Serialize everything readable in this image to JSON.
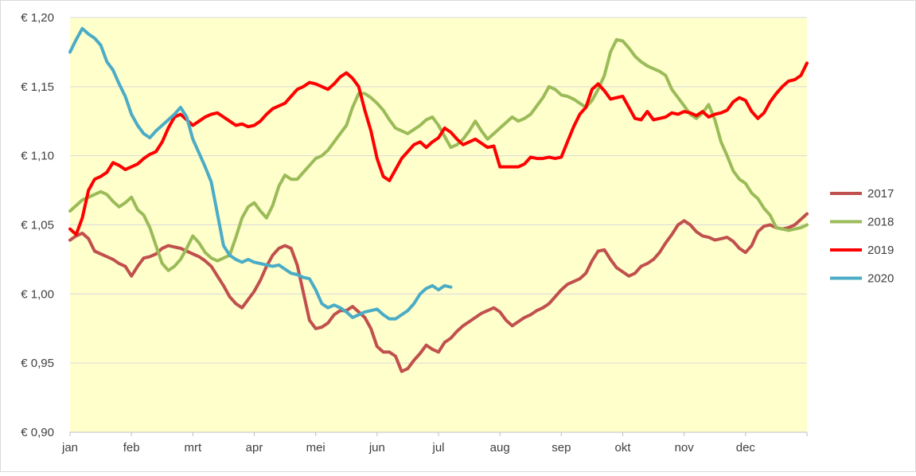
{
  "chart_data": {
    "type": "line",
    "title": "",
    "xlabel": "",
    "ylabel": "",
    "ylim": [
      0.9,
      1.2
    ],
    "y_ticks": [
      0.9,
      0.95,
      1.0,
      1.05,
      1.1,
      1.15,
      1.2
    ],
    "y_tick_labels": [
      "€ 0,90",
      "€ 0,95",
      "€ 1,00",
      "€ 1,05",
      "€ 1,10",
      "€ 1,15",
      "€ 1,20"
    ],
    "x_range_months": [
      0,
      12
    ],
    "month_labels": [
      "jan",
      "feb",
      "mrt",
      "apr",
      "mei",
      "jun",
      "jul",
      "aug",
      "sep",
      "okt",
      "nov",
      "dec"
    ],
    "grid": "horizontal",
    "legend_position": "right",
    "plot_background": "#FFFFCC",
    "series": [
      {
        "name": "2017",
        "color": "#C0504D",
        "x": [
          0.0,
          0.1,
          0.2,
          0.3,
          0.4,
          0.5,
          0.6,
          0.7,
          0.8,
          0.9,
          1.0,
          1.1,
          1.2,
          1.3,
          1.4,
          1.5,
          1.6,
          1.7,
          1.8,
          1.9,
          2.0,
          2.1,
          2.2,
          2.3,
          2.4,
          2.5,
          2.6,
          2.7,
          2.8,
          2.9,
          3.0,
          3.1,
          3.2,
          3.3,
          3.4,
          3.5,
          3.6,
          3.7,
          3.8,
          3.9,
          4.0,
          4.1,
          4.2,
          4.3,
          4.4,
          4.5,
          4.6,
          4.7,
          4.8,
          4.9,
          5.0,
          5.1,
          5.2,
          5.3,
          5.4,
          5.5,
          5.6,
          5.7,
          5.8,
          5.9,
          6.0,
          6.1,
          6.2,
          6.3,
          6.4,
          6.5,
          6.6,
          6.7,
          6.8,
          6.9,
          7.0,
          7.1,
          7.2,
          7.3,
          7.4,
          7.5,
          7.6,
          7.7,
          7.8,
          7.9,
          8.0,
          8.1,
          8.2,
          8.3,
          8.4,
          8.5,
          8.6,
          8.7,
          8.8,
          8.9,
          9.0,
          9.1,
          9.2,
          9.3,
          9.4,
          9.5,
          9.6,
          9.7,
          9.8,
          9.9,
          10.0,
          10.1,
          10.2,
          10.3,
          10.4,
          10.5,
          10.6,
          10.7,
          10.8,
          10.9,
          11.0,
          11.1,
          11.2,
          11.3,
          11.4,
          11.5,
          11.6,
          11.7,
          11.8,
          11.9,
          12.0
        ],
        "values": [
          1.039,
          1.042,
          1.044,
          1.04,
          1.031,
          1.029,
          1.027,
          1.025,
          1.022,
          1.02,
          1.013,
          1.02,
          1.026,
          1.027,
          1.029,
          1.033,
          1.035,
          1.034,
          1.033,
          1.031,
          1.029,
          1.027,
          1.024,
          1.02,
          1.013,
          1.006,
          0.998,
          0.993,
          0.99,
          0.996,
          1.002,
          1.01,
          1.02,
          1.028,
          1.033,
          1.035,
          1.033,
          1.021,
          1.001,
          0.981,
          0.975,
          0.976,
          0.979,
          0.985,
          0.988,
          0.988,
          0.991,
          0.987,
          0.983,
          0.975,
          0.962,
          0.958,
          0.958,
          0.955,
          0.944,
          0.946,
          0.952,
          0.957,
          0.963,
          0.96,
          0.958,
          0.965,
          0.968,
          0.973,
          0.977,
          0.98,
          0.983,
          0.986,
          0.988,
          0.99,
          0.987,
          0.981,
          0.977,
          0.98,
          0.983,
          0.985,
          0.988,
          0.99,
          0.993,
          0.998,
          1.003,
          1.007,
          1.009,
          1.011,
          1.015,
          1.024,
          1.031,
          1.032,
          1.025,
          1.019,
          1.016,
          1.013,
          1.015,
          1.02,
          1.022,
          1.025,
          1.03,
          1.037,
          1.043,
          1.05,
          1.053,
          1.05,
          1.045,
          1.042,
          1.041,
          1.039,
          1.04,
          1.041,
          1.038,
          1.033,
          1.03,
          1.035,
          1.045,
          1.049,
          1.05,
          1.048,
          1.047,
          1.048,
          1.05,
          1.054,
          1.058
        ]
      },
      {
        "name": "2018",
        "color": "#9BBB59",
        "x": [
          0.0,
          0.1,
          0.2,
          0.3,
          0.4,
          0.5,
          0.6,
          0.7,
          0.8,
          0.9,
          1.0,
          1.1,
          1.2,
          1.3,
          1.4,
          1.5,
          1.6,
          1.7,
          1.8,
          1.9,
          2.0,
          2.1,
          2.2,
          2.3,
          2.4,
          2.5,
          2.6,
          2.7,
          2.8,
          2.9,
          3.0,
          3.1,
          3.2,
          3.3,
          3.4,
          3.5,
          3.6,
          3.7,
          3.8,
          3.9,
          4.0,
          4.1,
          4.2,
          4.3,
          4.4,
          4.5,
          4.6,
          4.7,
          4.8,
          4.9,
          5.0,
          5.1,
          5.2,
          5.3,
          5.4,
          5.5,
          5.6,
          5.7,
          5.8,
          5.9,
          6.0,
          6.1,
          6.2,
          6.3,
          6.4,
          6.5,
          6.6,
          6.7,
          6.8,
          6.9,
          7.0,
          7.1,
          7.2,
          7.3,
          7.4,
          7.5,
          7.6,
          7.7,
          7.8,
          7.9,
          8.0,
          8.1,
          8.2,
          8.3,
          8.4,
          8.5,
          8.6,
          8.7,
          8.8,
          8.9,
          9.0,
          9.1,
          9.2,
          9.3,
          9.4,
          9.5,
          9.6,
          9.7,
          9.8,
          9.9,
          10.0,
          10.1,
          10.2,
          10.3,
          10.4,
          10.5,
          10.6,
          10.7,
          10.8,
          10.9,
          11.0,
          11.1,
          11.2,
          11.3,
          11.4,
          11.5,
          11.6,
          11.7,
          11.8,
          11.9,
          12.0
        ],
        "values": [
          1.06,
          1.064,
          1.068,
          1.07,
          1.072,
          1.074,
          1.072,
          1.067,
          1.063,
          1.066,
          1.07,
          1.061,
          1.057,
          1.048,
          1.035,
          1.022,
          1.017,
          1.02,
          1.025,
          1.033,
          1.042,
          1.037,
          1.03,
          1.026,
          1.024,
          1.026,
          1.028,
          1.041,
          1.055,
          1.063,
          1.066,
          1.06,
          1.055,
          1.064,
          1.078,
          1.086,
          1.083,
          1.083,
          1.088,
          1.093,
          1.098,
          1.1,
          1.104,
          1.11,
          1.116,
          1.122,
          1.135,
          1.145,
          1.145,
          1.142,
          1.138,
          1.133,
          1.126,
          1.12,
          1.118,
          1.116,
          1.119,
          1.122,
          1.126,
          1.128,
          1.122,
          1.114,
          1.106,
          1.108,
          1.112,
          1.118,
          1.125,
          1.118,
          1.112,
          1.116,
          1.12,
          1.124,
          1.128,
          1.125,
          1.127,
          1.13,
          1.136,
          1.142,
          1.15,
          1.148,
          1.144,
          1.143,
          1.141,
          1.138,
          1.135,
          1.14,
          1.148,
          1.158,
          1.175,
          1.184,
          1.183,
          1.178,
          1.172,
          1.168,
          1.165,
          1.163,
          1.161,
          1.158,
          1.148,
          1.142,
          1.136,
          1.13,
          1.127,
          1.131,
          1.137,
          1.126,
          1.11,
          1.1,
          1.089,
          1.083,
          1.08,
          1.073,
          1.069,
          1.062,
          1.057,
          1.048,
          1.047,
          1.046,
          1.047,
          1.048,
          1.05
        ]
      },
      {
        "name": "2019",
        "color": "#FF0000",
        "x": [
          0.0,
          0.1,
          0.2,
          0.3,
          0.4,
          0.5,
          0.6,
          0.7,
          0.8,
          0.9,
          1.0,
          1.1,
          1.2,
          1.3,
          1.4,
          1.5,
          1.6,
          1.7,
          1.8,
          1.9,
          2.0,
          2.1,
          2.2,
          2.3,
          2.4,
          2.5,
          2.6,
          2.7,
          2.8,
          2.9,
          3.0,
          3.1,
          3.2,
          3.3,
          3.4,
          3.5,
          3.6,
          3.7,
          3.8,
          3.9,
          4.0,
          4.1,
          4.2,
          4.3,
          4.4,
          4.5,
          4.6,
          4.7,
          4.8,
          4.9,
          5.0,
          5.1,
          5.2,
          5.3,
          5.4,
          5.5,
          5.6,
          5.7,
          5.8,
          5.9,
          6.0,
          6.1,
          6.2,
          6.3,
          6.4,
          6.5,
          6.6,
          6.7,
          6.8,
          6.9,
          7.0,
          7.1,
          7.2,
          7.3,
          7.4,
          7.5,
          7.6,
          7.7,
          7.8,
          7.9,
          8.0,
          8.1,
          8.2,
          8.3,
          8.4,
          8.5,
          8.6,
          8.7,
          8.8,
          8.9,
          9.0,
          9.1,
          9.2,
          9.3,
          9.4,
          9.5,
          9.6,
          9.7,
          9.8,
          9.9,
          10.0,
          10.1,
          10.2,
          10.3,
          10.4,
          10.5,
          10.6,
          10.7,
          10.8,
          10.9,
          11.0,
          11.1,
          11.2,
          11.3,
          11.4,
          11.5,
          11.6,
          11.7,
          11.8,
          11.9,
          12.0
        ],
        "values": [
          1.047,
          1.043,
          1.055,
          1.075,
          1.083,
          1.085,
          1.088,
          1.095,
          1.093,
          1.09,
          1.092,
          1.094,
          1.098,
          1.101,
          1.103,
          1.11,
          1.12,
          1.128,
          1.13,
          1.126,
          1.122,
          1.125,
          1.128,
          1.13,
          1.131,
          1.128,
          1.125,
          1.122,
          1.123,
          1.121,
          1.122,
          1.125,
          1.13,
          1.134,
          1.136,
          1.138,
          1.143,
          1.148,
          1.15,
          1.153,
          1.152,
          1.15,
          1.148,
          1.152,
          1.157,
          1.16,
          1.156,
          1.15,
          1.133,
          1.118,
          1.098,
          1.085,
          1.082,
          1.09,
          1.098,
          1.103,
          1.108,
          1.11,
          1.106,
          1.11,
          1.113,
          1.12,
          1.117,
          1.112,
          1.108,
          1.11,
          1.112,
          1.109,
          1.106,
          1.107,
          1.092,
          1.092,
          1.092,
          1.092,
          1.094,
          1.099,
          1.098,
          1.098,
          1.099,
          1.098,
          1.099,
          1.11,
          1.121,
          1.13,
          1.135,
          1.148,
          1.152,
          1.147,
          1.141,
          1.142,
          1.143,
          1.135,
          1.127,
          1.126,
          1.132,
          1.126,
          1.127,
          1.128,
          1.131,
          1.13,
          1.132,
          1.131,
          1.129,
          1.132,
          1.128,
          1.13,
          1.131,
          1.133,
          1.139,
          1.142,
          1.14,
          1.132,
          1.127,
          1.131,
          1.139,
          1.145,
          1.15,
          1.154,
          1.155,
          1.158,
          1.167
        ]
      },
      {
        "name": "2020",
        "color": "#4BACC6",
        "x": [
          0.0,
          0.1,
          0.2,
          0.3,
          0.4,
          0.5,
          0.6,
          0.7,
          0.8,
          0.9,
          1.0,
          1.1,
          1.2,
          1.3,
          1.4,
          1.5,
          1.6,
          1.7,
          1.8,
          1.9,
          2.0,
          2.1,
          2.2,
          2.3,
          2.4,
          2.5,
          2.6,
          2.7,
          2.8,
          2.9,
          3.0,
          3.1,
          3.2,
          3.3,
          3.4,
          3.5,
          3.6,
          3.7,
          3.8,
          3.9,
          4.0,
          4.1,
          4.2,
          4.3,
          4.4,
          4.5,
          4.6,
          4.7,
          4.8,
          4.9,
          5.0,
          5.1,
          5.2,
          5.3,
          5.4,
          5.5,
          5.6,
          5.7,
          5.8,
          5.9,
          6.0,
          6.1,
          6.2
        ],
        "values": [
          1.175,
          1.184,
          1.192,
          1.188,
          1.185,
          1.18,
          1.168,
          1.162,
          1.152,
          1.143,
          1.13,
          1.122,
          1.116,
          1.113,
          1.118,
          1.122,
          1.126,
          1.13,
          1.135,
          1.128,
          1.112,
          1.102,
          1.092,
          1.081,
          1.058,
          1.035,
          1.028,
          1.025,
          1.023,
          1.025,
          1.023,
          1.022,
          1.021,
          1.02,
          1.021,
          1.018,
          1.015,
          1.014,
          1.012,
          1.011,
          1.003,
          0.993,
          0.99,
          0.992,
          0.99,
          0.987,
          0.983,
          0.985,
          0.987,
          0.988,
          0.989,
          0.985,
          0.982,
          0.982,
          0.985,
          0.988,
          0.993,
          1.0,
          1.004,
          1.006,
          1.003,
          1.006,
          1.005
        ]
      }
    ]
  }
}
